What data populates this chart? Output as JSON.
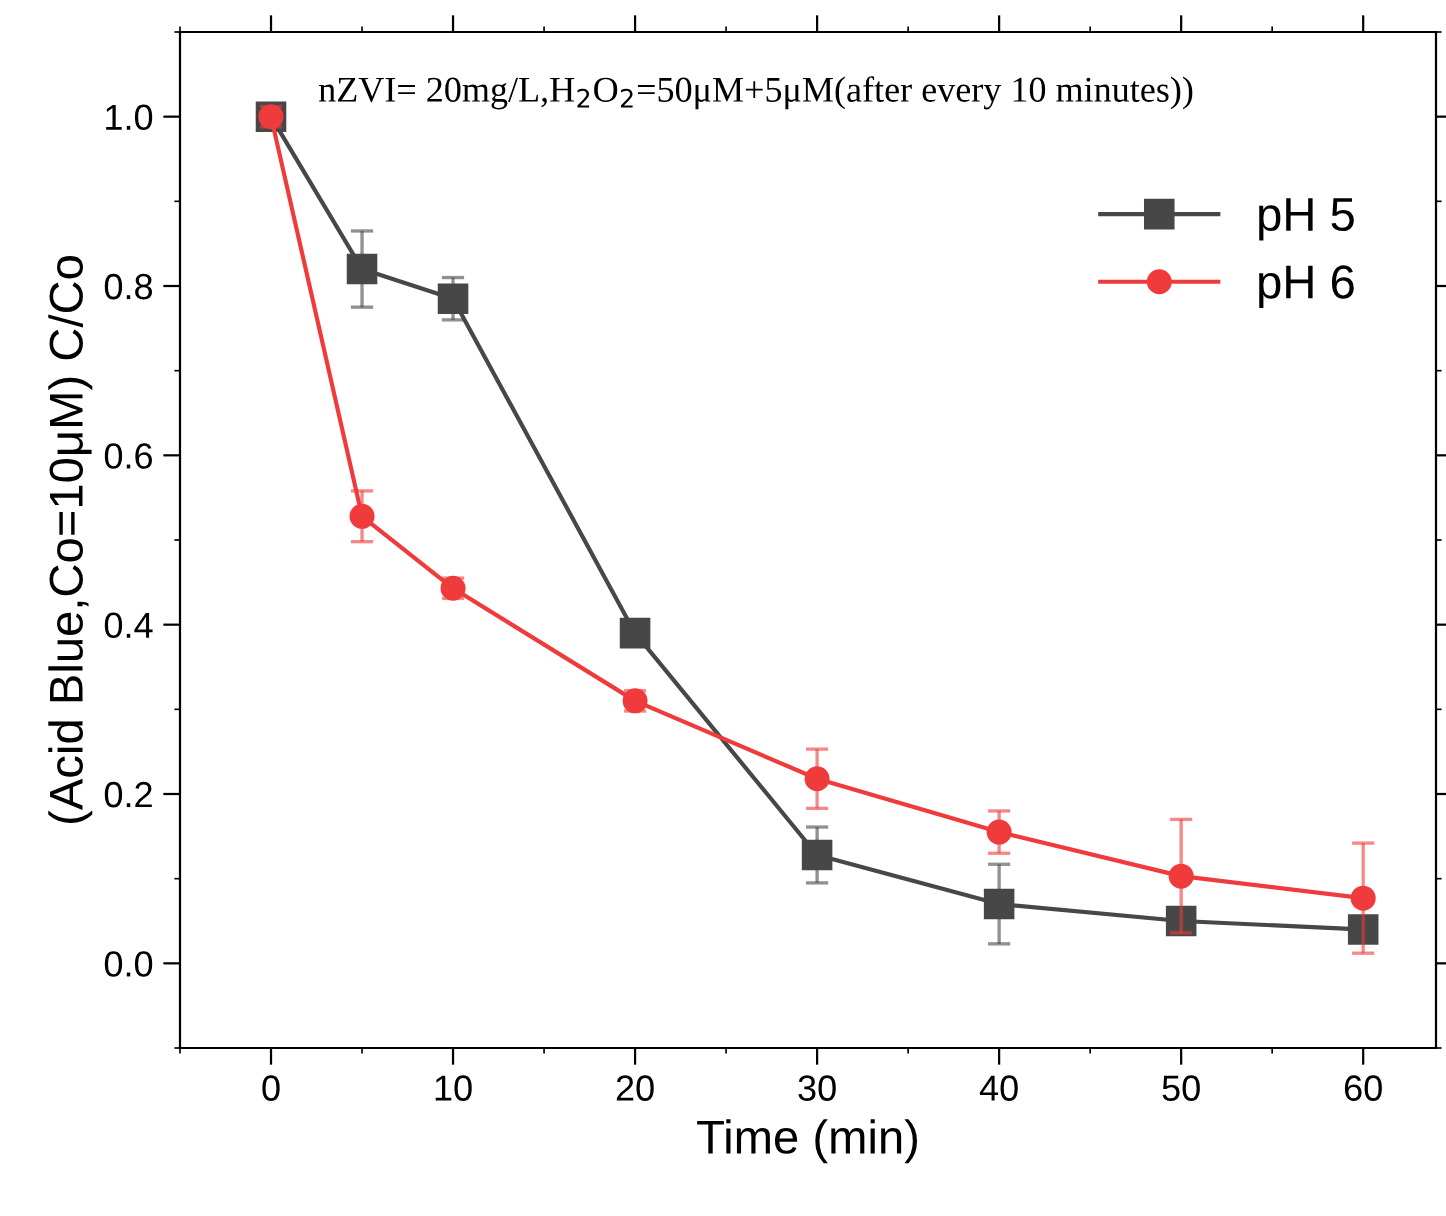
{
  "chart_data": {
    "type": "line",
    "xlabel": "Time (min)",
    "ylabel": "(Acid Blue,Co=10μM) C/Co",
    "annotations": [
      "nZVI= 20mg/L,H$_{2}$O$_{2}$=50μM+5μM(after every 10 minutes))"
    ],
    "x": [
      0,
      5,
      10,
      20,
      30,
      40,
      50,
      60
    ],
    "series": [
      {
        "name": "pH 5",
        "color": "#474747",
        "marker": "square",
        "values": [
          1.0,
          0.82,
          0.785,
          0.39,
          0.128,
          0.07,
          0.05,
          0.04
        ],
        "errors": [
          0.015,
          0.045,
          0.025,
          0.01,
          0.033,
          0.047,
          0.01,
          0.012
        ]
      },
      {
        "name": "pH 6",
        "color": "#ef3b3b",
        "marker": "circle",
        "values": [
          1.0,
          0.528,
          0.443,
          0.31,
          0.218,
          0.155,
          0.103,
          0.077
        ],
        "errors": [
          0.012,
          0.03,
          0.012,
          0.012,
          0.035,
          0.025,
          0.067,
          0.065
        ]
      }
    ],
    "xlim": [
      -5,
      64
    ],
    "xticks": [
      0,
      10,
      20,
      30,
      40,
      50,
      60
    ],
    "ylim": [
      -0.1,
      1.1
    ],
    "yticks": [
      {
        "value": 0,
        "label": "0.0"
      },
      0.2,
      0.4,
      0.6,
      0.8,
      {
        "value": 1,
        "label": "1.0"
      }
    ],
    "grid": false,
    "legend": "top right",
    "line_style": "solid"
  }
}
